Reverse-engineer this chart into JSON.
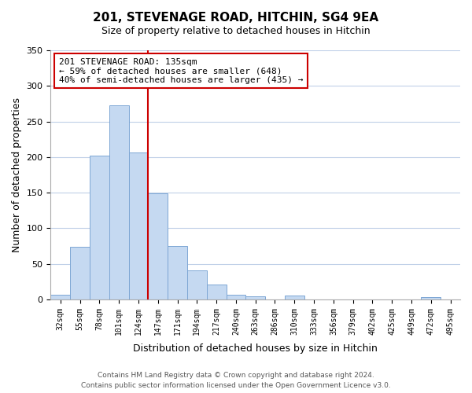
{
  "title": "201, STEVENAGE ROAD, HITCHIN, SG4 9EA",
  "subtitle": "Size of property relative to detached houses in Hitchin",
  "xlabel": "Distribution of detached houses by size in Hitchin",
  "ylabel": "Number of detached properties",
  "bin_labels": [
    "32sqm",
    "55sqm",
    "78sqm",
    "101sqm",
    "124sqm",
    "147sqm",
    "171sqm",
    "194sqm",
    "217sqm",
    "240sqm",
    "263sqm",
    "286sqm",
    "310sqm",
    "333sqm",
    "356sqm",
    "379sqm",
    "402sqm",
    "425sqm",
    "449sqm",
    "472sqm",
    "495sqm"
  ],
  "bar_heights": [
    7,
    74,
    202,
    273,
    206,
    149,
    75,
    41,
    21,
    6,
    4,
    0,
    5,
    0,
    0,
    0,
    0,
    0,
    0,
    3,
    0
  ],
  "bar_color": "#c5d9f1",
  "bar_edge_color": "#7da6d4",
  "vline_x": 4.5,
  "vline_color": "#cc0000",
  "ylim": [
    0,
    350
  ],
  "yticks": [
    0,
    50,
    100,
    150,
    200,
    250,
    300,
    350
  ],
  "annotation_text": "201 STEVENAGE ROAD: 135sqm\n← 59% of detached houses are smaller (648)\n40% of semi-detached houses are larger (435) →",
  "annotation_box_color": "#ffffff",
  "annotation_box_edge": "#cc0000",
  "footer_line1": "Contains HM Land Registry data © Crown copyright and database right 2024.",
  "footer_line2": "Contains public sector information licensed under the Open Government Licence v3.0.",
  "background_color": "#ffffff",
  "grid_color": "#c0d0e8"
}
